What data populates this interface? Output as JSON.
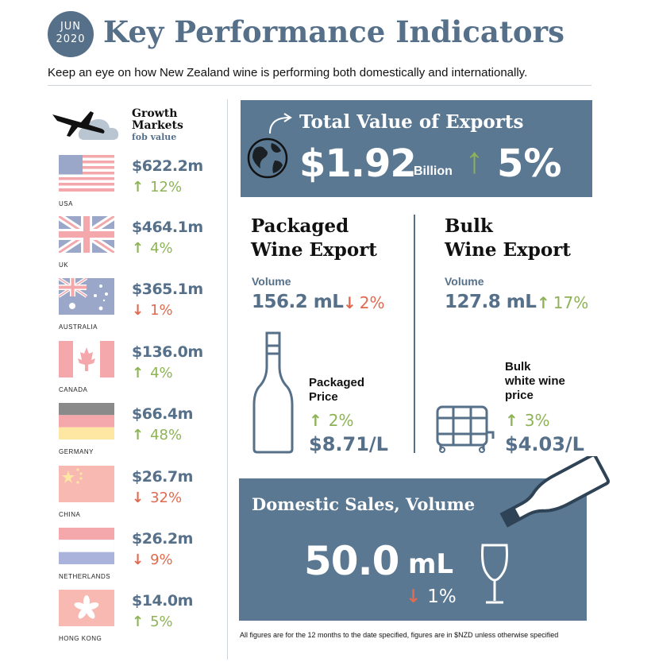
{
  "header": {
    "month": "JUN",
    "year": "2020",
    "title": "Key Performance Indicators",
    "subtitle": "Keep an eye on how New Zealand wine is performing both domestically and internationally."
  },
  "growth_markets": {
    "title_line1": "Growth",
    "title_line2": "Markets",
    "subtitle": "fob value",
    "countries": [
      {
        "name": "USA",
        "value": "$622.2m",
        "change": "12%",
        "direction": "up"
      },
      {
        "name": "UK",
        "value": "$464.1m",
        "change": "4%",
        "direction": "up"
      },
      {
        "name": "AUSTRALIA",
        "value": "$365.1m",
        "change": "1%",
        "direction": "down"
      },
      {
        "name": "CANADA",
        "value": "$136.0m",
        "change": "4%",
        "direction": "up"
      },
      {
        "name": "GERMANY",
        "value": "$66.4m",
        "change": "48%",
        "direction": "up"
      },
      {
        "name": "CHINA",
        "value": "$26.7m",
        "change": "32%",
        "direction": "down"
      },
      {
        "name": "NETHERLANDS",
        "value": "$26.2m",
        "change": "9%",
        "direction": "down"
      },
      {
        "name": "HONG KONG",
        "value": "$14.0m",
        "change": "5%",
        "direction": "up"
      }
    ]
  },
  "exports": {
    "title": "Total Value of Exports",
    "value": "$1.92",
    "unit": "Billion",
    "change": "5%"
  },
  "packaged": {
    "title_line1": "Packaged",
    "title_line2": "Wine Export",
    "volume_label": "Volume",
    "volume_value": "156.2 mL",
    "volume_change": "2%",
    "price_label_line1": "Packaged",
    "price_label_line2": "Price",
    "price_change": "2%",
    "price_value": "$8.71/L"
  },
  "bulk": {
    "title_line1": "Bulk",
    "title_line2": "Wine Export",
    "volume_label": "Volume",
    "volume_value": "127.8 mL",
    "volume_change": "17%",
    "price_label_line1": "Bulk",
    "price_label_line2": "white wine",
    "price_label_line3": "price",
    "price_change": "3%",
    "price_value": "$4.03/L"
  },
  "domestic": {
    "title": "Domestic Sales, Volume",
    "value": "50.0",
    "unit": "mL",
    "change": "1%"
  },
  "footnote": "All figures are for the 12 months to the date specified, figures are in $NZD unless otherwise specified",
  "colors": {
    "slate": "#56708a",
    "box": "#5b7892",
    "up": "#8db356",
    "down": "#e06a50"
  },
  "icons": [
    "airplane-icon",
    "cloud-icon",
    "globe-icon",
    "curved-arrow-icon",
    "wine-bottle-icon",
    "barrel-icon",
    "tilted-bottle-icon",
    "wine-glass-icon"
  ]
}
